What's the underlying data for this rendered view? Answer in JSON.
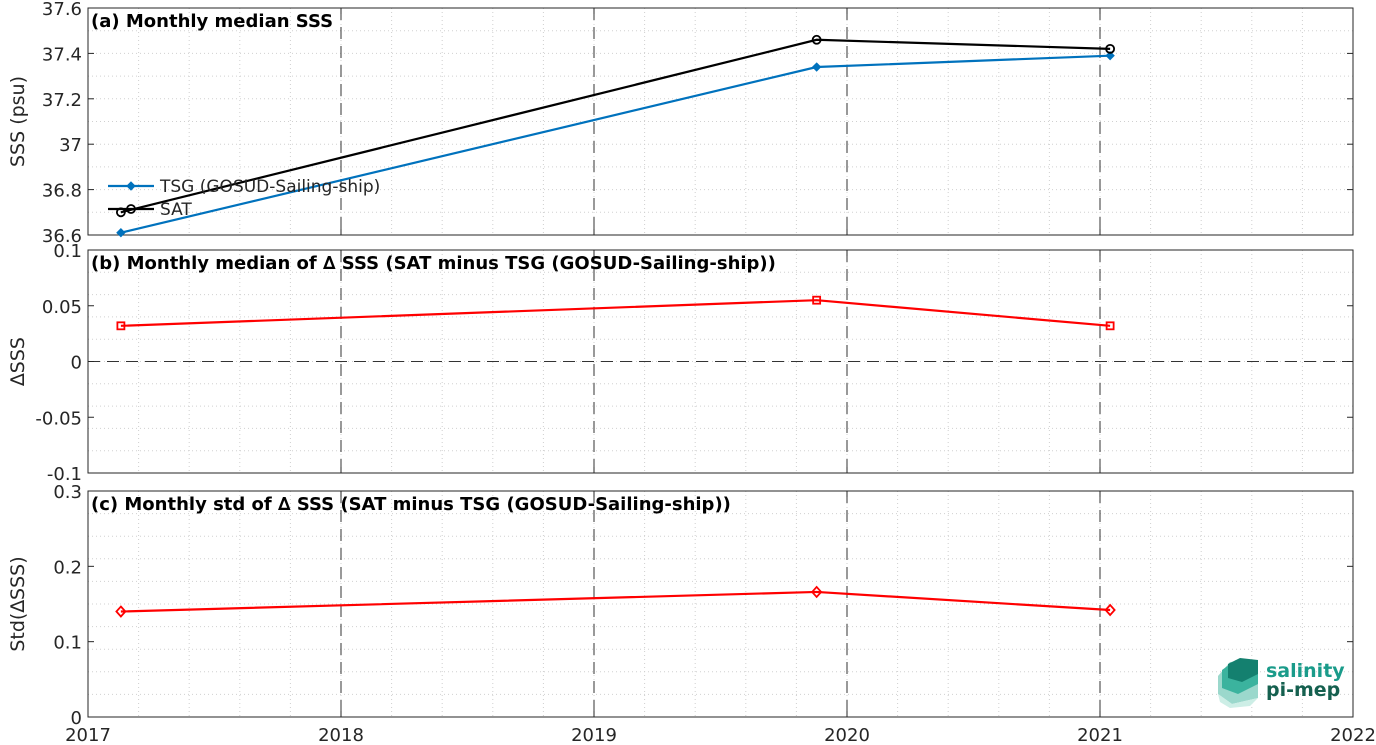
{
  "chart_data": [
    {
      "id": "a",
      "type": "line",
      "title": "(a) Monthly median SSS",
      "ylabel": "SSS (psu)",
      "xlim": [
        2017,
        2022
      ],
      "ylim": [
        36.6,
        37.6
      ],
      "yticks": [
        "36.6",
        "36.8",
        "37",
        "37.2",
        "37.4",
        "37.6"
      ],
      "grid": true,
      "legend_position": "left",
      "series": [
        {
          "name": "TSG (GOSUD-Sailing-ship)",
          "color": "#0072BD",
          "marker": "diamond-filled",
          "x": [
            2017.13,
            2019.88,
            2021.04
          ],
          "y": [
            36.61,
            37.34,
            37.39
          ]
        },
        {
          "name": "SAT",
          "color": "#000000",
          "marker": "circle-open",
          "x": [
            2017.13,
            2019.88,
            2021.04
          ],
          "y": [
            36.7,
            37.46,
            37.42
          ]
        }
      ]
    },
    {
      "id": "b",
      "type": "line",
      "title": "(b) Monthly median of ∆ SSS (SAT minus TSG (GOSUD-Sailing-ship))",
      "ylabel": "∆SSS",
      "xlim": [
        2017,
        2022
      ],
      "ylim": [
        -0.1,
        0.1
      ],
      "yticks": [
        "-0.1",
        "-0.05",
        "0",
        "0.05",
        "0.1"
      ],
      "grid": true,
      "zero_line": true,
      "series": [
        {
          "color": "#FF0000",
          "marker": "square-open",
          "x": [
            2017.13,
            2019.88,
            2021.04
          ],
          "y": [
            0.032,
            0.055,
            0.032
          ]
        }
      ]
    },
    {
      "id": "c",
      "type": "line",
      "title": "(c) Monthly std of ∆ SSS (SAT minus TSG (GOSUD-Sailing-ship))",
      "ylabel": "Std(∆SSS)",
      "xlim": [
        2017,
        2022
      ],
      "ylim": [
        0,
        0.3
      ],
      "yticks": [
        "0",
        "0.1",
        "0.2",
        "0.3"
      ],
      "xticks": [
        "2017",
        "2018",
        "2019",
        "2020",
        "2021",
        "2022"
      ],
      "grid": true,
      "series": [
        {
          "color": "#FF0000",
          "marker": "diamond-open",
          "x": [
            2017.13,
            2019.88,
            2021.04
          ],
          "y": [
            0.14,
            0.166,
            0.142
          ]
        }
      ]
    }
  ],
  "logo": {
    "line1": "salinity",
    "line2": "pi-mep",
    "color": "#1a9b8a"
  }
}
